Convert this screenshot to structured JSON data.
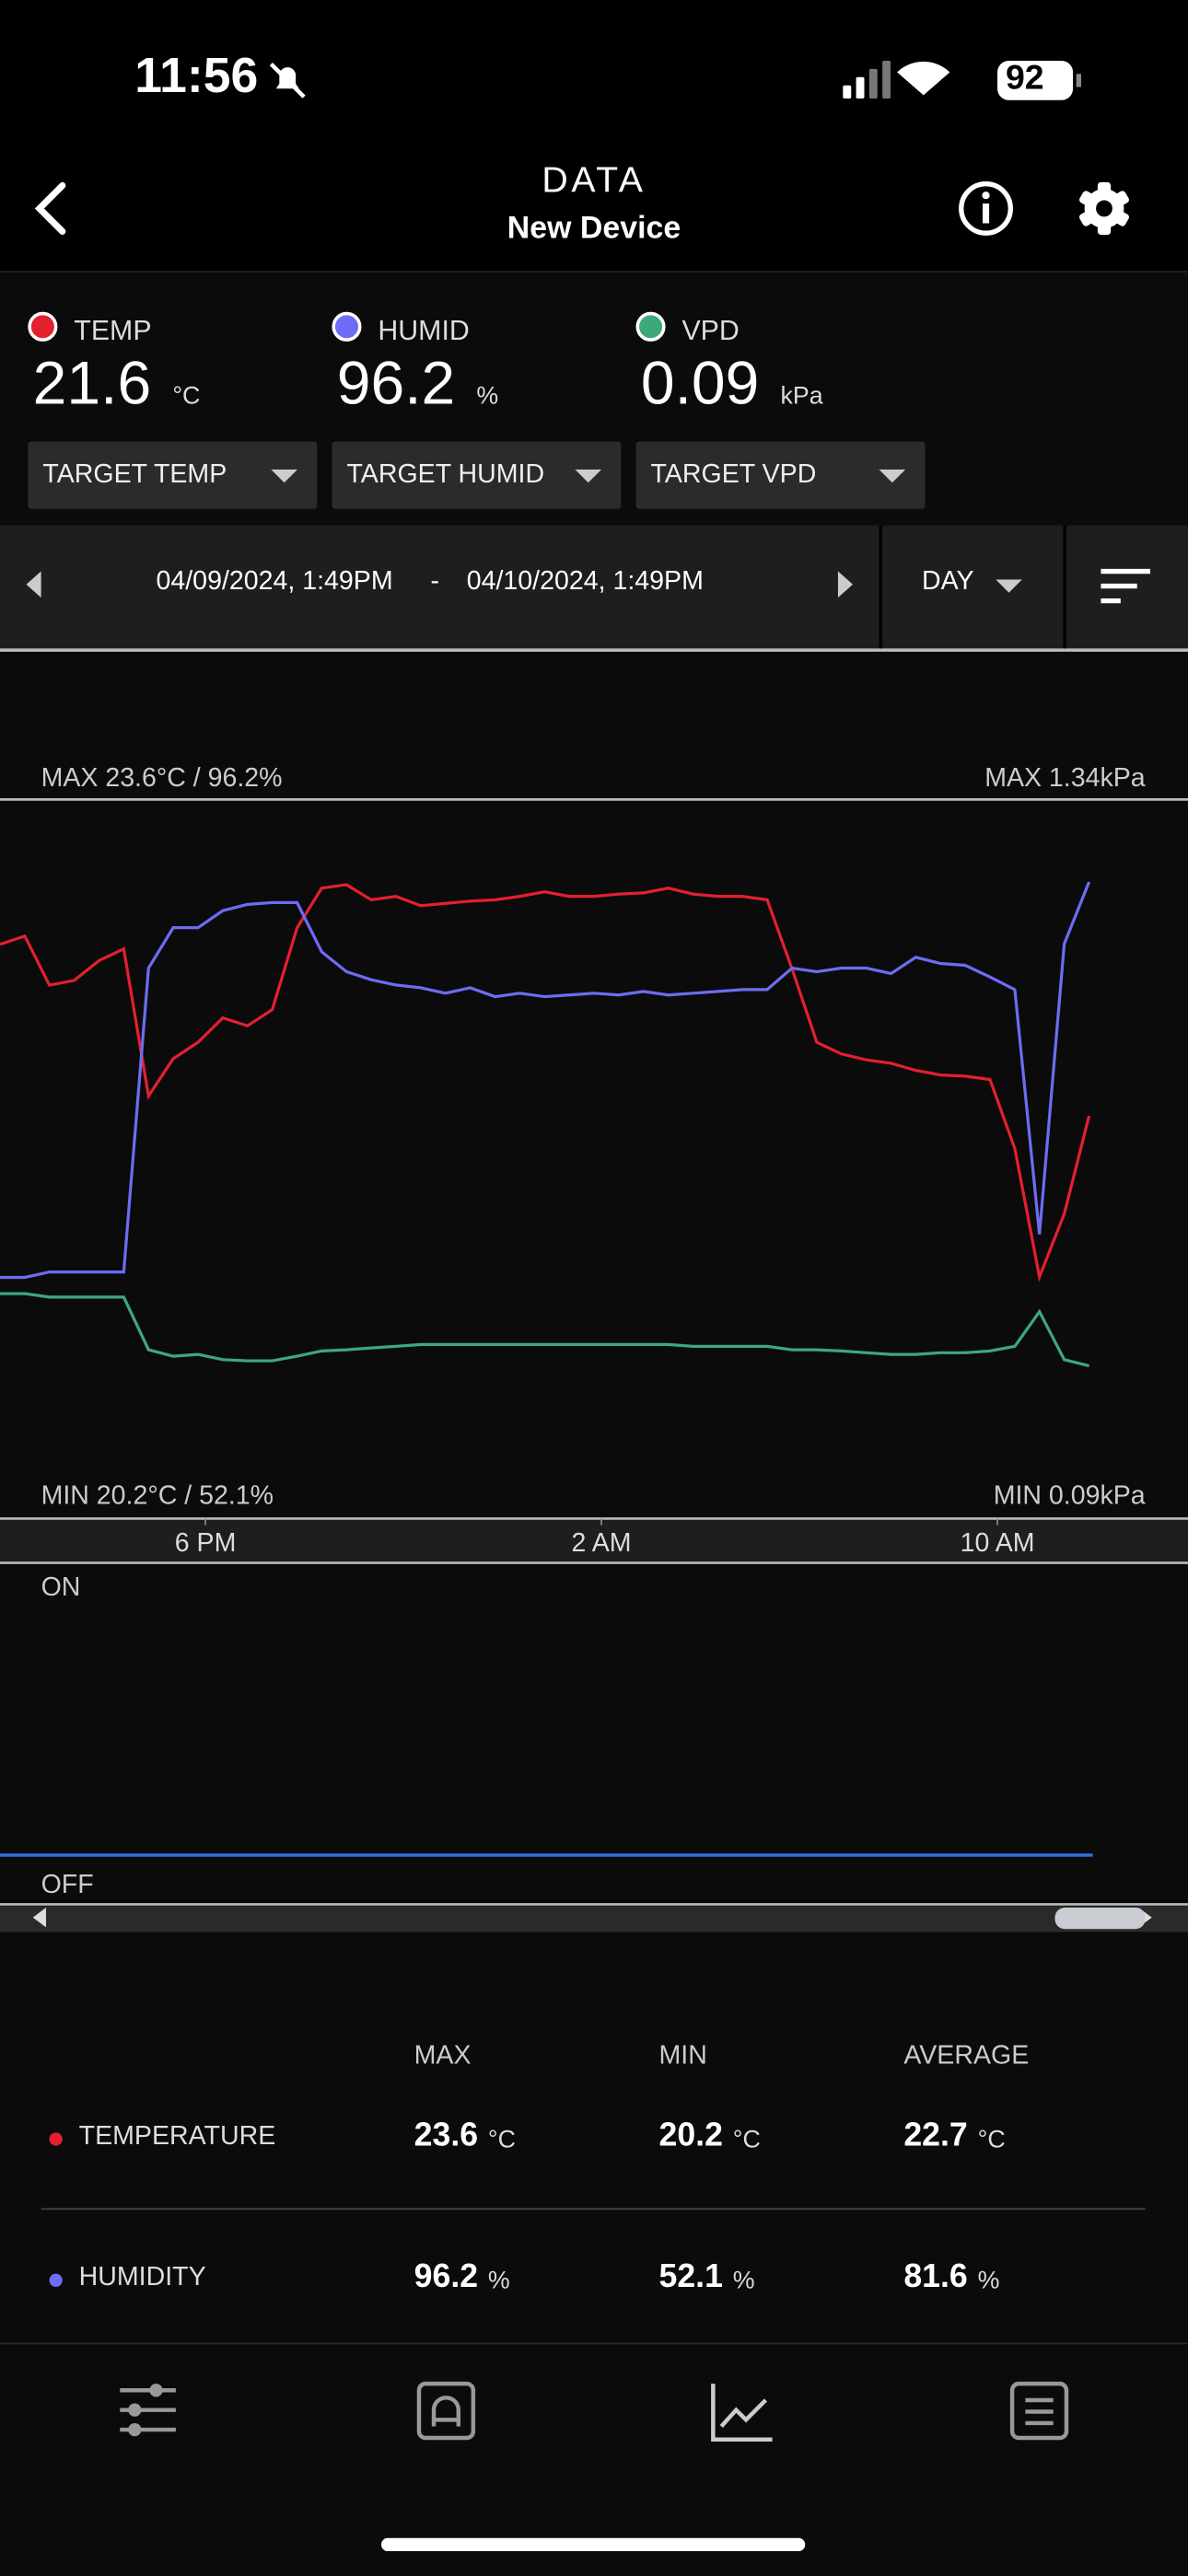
{
  "status_bar": {
    "time": "11:56",
    "battery": 92
  },
  "header": {
    "title": "DATA",
    "subtitle": "New Device"
  },
  "readings": [
    {
      "value": 21.6,
      "unit": "°C"
    },
    {
      "value": 96.2,
      "unit": "%"
    },
    {
      "value": 0.09,
      "unit": "kPa"
    }
  ],
  "targets": [
    "TARGET TEMP",
    "TARGET HUMID",
    "TARGET VPD"
  ],
  "range": {
    "start": "04/09/2024, 1:49PM",
    "separator": "-",
    "end": "04/10/2024, 1:49PM",
    "period": "DAY"
  },
  "chart_data": {
    "type": "line",
    "max_label": "MAX 23.6°C / 96.2%",
    "max_label_right": "MAX 1.34kPa",
    "min_label": "MIN 20.2°C / 52.1%",
    "min_label_right": "MIN 0.09kPa",
    "xlim": [
      0,
      24
    ],
    "xticks": [
      {
        "value": 4.15,
        "label": "6 PM"
      },
      {
        "value": 12.15,
        "label": "2 AM"
      },
      {
        "value": 20.15,
        "label": "10 AM"
      }
    ],
    "x": [
      0,
      0.5,
      1,
      1.5,
      2,
      2.5,
      3,
      3.5,
      4,
      4.5,
      5,
      5.5,
      6,
      6.5,
      7,
      7.5,
      8,
      8.5,
      9,
      9.5,
      10,
      10.5,
      11,
      11.5,
      12,
      12.5,
      13,
      13.5,
      14,
      14.5,
      15,
      15.5,
      16,
      16.5,
      17,
      17.5,
      18,
      18.5,
      19,
      19.5,
      20,
      20.5,
      21,
      21.5,
      22
    ],
    "series": [
      {
        "name": "TEMP",
        "color": "#e3202e",
        "ylim": [
          18.16,
          24.32
        ],
        "values": [
          23.08,
          23.15,
          22.73,
          22.77,
          22.94,
          23.04,
          21.78,
          22.1,
          22.24,
          22.45,
          22.38,
          22.52,
          23.22,
          23.56,
          23.59,
          23.46,
          23.49,
          23.41,
          23.43,
          23.45,
          23.46,
          23.49,
          23.53,
          23.49,
          23.49,
          23.51,
          23.52,
          23.56,
          23.51,
          23.49,
          23.49,
          23.46,
          22.87,
          22.24,
          22.14,
          22.09,
          22.06,
          22.0,
          21.96,
          21.95,
          21.92,
          21.33,
          20.23,
          20.77,
          21.61
        ]
      },
      {
        "name": "HUMID",
        "color": "#6d6cf4",
        "ylim": [
          25.2,
          105.4
        ],
        "values": [
          52.1,
          52.1,
          52.7,
          52.7,
          52.7,
          52.7,
          86.6,
          91.1,
          91.1,
          93.0,
          93.7,
          93.9,
          93.9,
          88.4,
          86.2,
          85.3,
          84.7,
          84.4,
          83.8,
          84.4,
          83.4,
          83.8,
          83.4,
          83.6,
          83.8,
          83.6,
          84.0,
          83.6,
          83.8,
          84.0,
          84.2,
          84.2,
          86.6,
          86.2,
          86.6,
          86.6,
          86.0,
          87.8,
          87.1,
          86.9,
          85.6,
          84.2,
          56.9,
          89.3,
          96.2
        ]
      },
      {
        "name": "VPD",
        "color": "#3ea87c",
        "ylim": [
          -2.55,
          9.89
        ],
        "values": [
          1.34,
          1.34,
          1.28,
          1.28,
          1.28,
          1.28,
          0.37,
          0.26,
          0.29,
          0.2,
          0.18,
          0.18,
          0.26,
          0.35,
          0.37,
          0.4,
          0.43,
          0.46,
          0.46,
          0.46,
          0.46,
          0.46,
          0.46,
          0.46,
          0.46,
          0.46,
          0.46,
          0.46,
          0.43,
          0.43,
          0.43,
          0.43,
          0.37,
          0.37,
          0.35,
          0.32,
          0.29,
          0.29,
          0.32,
          0.32,
          0.35,
          0.43,
          1.03,
          0.2,
          0.09
        ]
      }
    ]
  },
  "state_chart": {
    "on": "ON",
    "off": "OFF"
  },
  "stats": {
    "columns": [
      "MAX",
      "MIN",
      "AVERAGE"
    ],
    "rows": [
      {
        "name": "TEMPERATURE",
        "color": "#e3202e",
        "unit": "°C",
        "values": [
          23.6,
          20.2,
          22.7
        ]
      },
      {
        "name": "HUMIDITY",
        "color": "#6d6cf4",
        "unit": "%",
        "values": [
          96.2,
          52.1,
          81.6
        ]
      }
    ]
  }
}
